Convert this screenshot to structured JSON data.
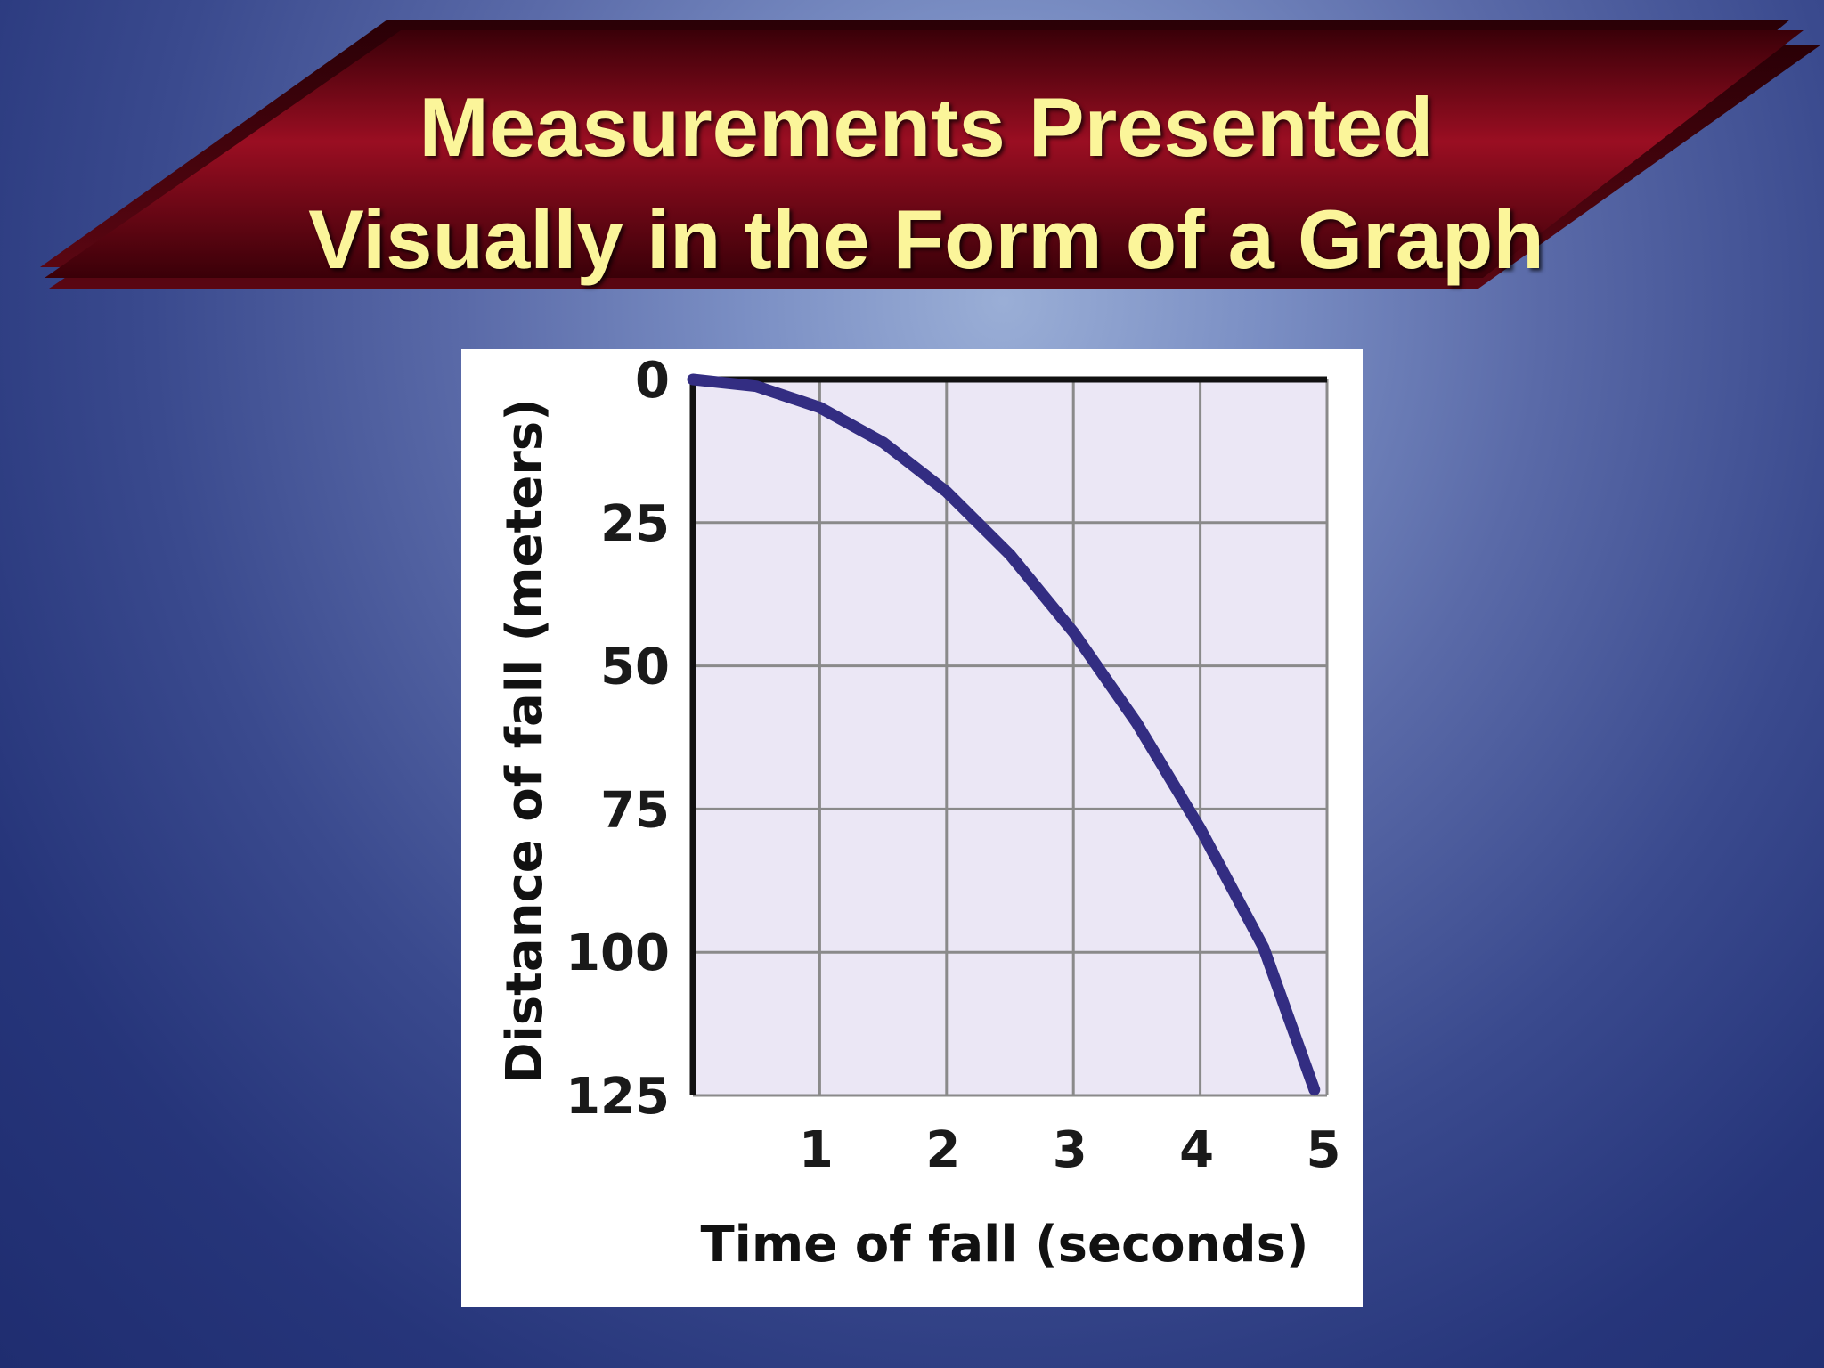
{
  "slide": {
    "title_line1": "Measurements Presented",
    "title_line2": "Visually in the Form of a Graph",
    "banner_color": "#8c0a1c",
    "title_color": "#fbf59a"
  },
  "chart_data": {
    "type": "line",
    "xlabel": "Time of fall (seconds)",
    "ylabel": "Distance of fall (meters)",
    "xlim": [
      0,
      5
    ],
    "ylim": [
      0,
      125
    ],
    "y_inverted": true,
    "grid": true,
    "x_ticks": [
      1,
      2,
      3,
      4,
      5
    ],
    "y_ticks": [
      0,
      25,
      50,
      75,
      100,
      125
    ],
    "line_color": "#332d82",
    "plot_background": "#ebe7f5",
    "series": [
      {
        "x": [
          0,
          0.5,
          1,
          1.5,
          2,
          2.5,
          3,
          3.5,
          4,
          4.5,
          4.9
        ],
        "y": [
          0,
          1.2,
          4.9,
          11,
          19.6,
          30.6,
          44.1,
          60,
          78.4,
          99.2,
          124
        ]
      }
    ]
  }
}
